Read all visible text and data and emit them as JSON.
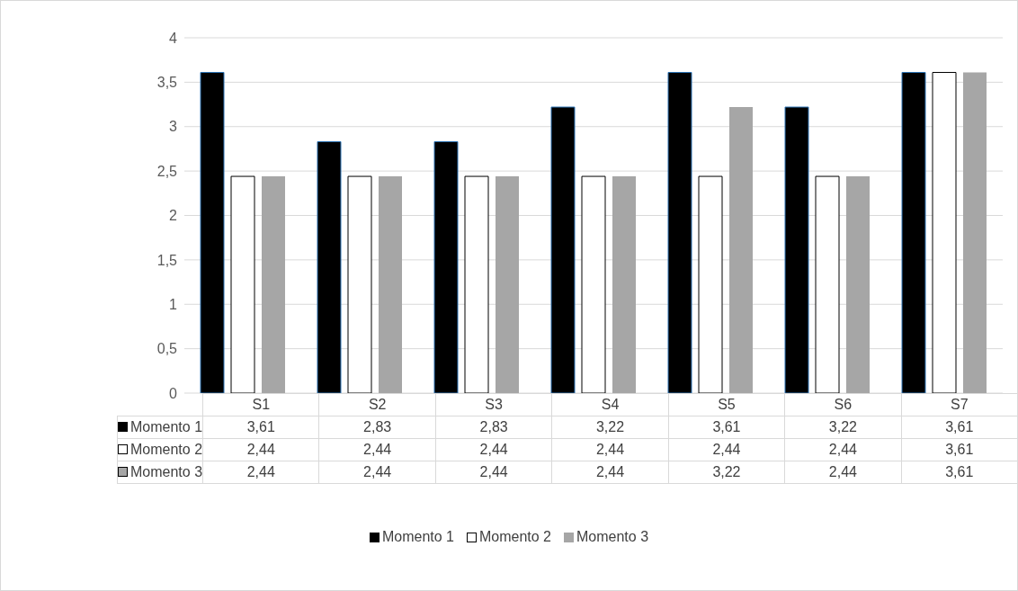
{
  "chart_data": {
    "type": "bar",
    "categories": [
      "S1",
      "S2",
      "S3",
      "S4",
      "S5",
      "S6",
      "S7"
    ],
    "series": [
      {
        "name": "Momento 1",
        "color": "#000000",
        "values": [
          3.61,
          2.83,
          2.83,
          3.22,
          3.61,
          3.22,
          3.61
        ],
        "value_labels": [
          "3,61",
          "2,83",
          "2,83",
          "3,22",
          "3,61",
          "3,22",
          "3,61"
        ]
      },
      {
        "name": "Momento 2",
        "color": "#ffffff",
        "values": [
          2.44,
          2.44,
          2.44,
          2.44,
          2.44,
          2.44,
          3.61
        ],
        "value_labels": [
          "2,44",
          "2,44",
          "2,44",
          "2,44",
          "2,44",
          "2,44",
          "3,61"
        ]
      },
      {
        "name": "Momento 3",
        "color": "#a6a6a6",
        "values": [
          2.44,
          2.44,
          2.44,
          2.44,
          3.22,
          2.44,
          3.61
        ],
        "value_labels": [
          "2,44",
          "2,44",
          "2,44",
          "2,44",
          "3,22",
          "2,44",
          "3,61"
        ]
      }
    ],
    "ylim": [
      0,
      4
    ],
    "yticks": [
      0,
      {
        "value": 0.5,
        "label": "0,5"
      },
      1,
      {
        "value": 1.5,
        "label": "1,5"
      },
      2,
      {
        "value": 2.5,
        "label": "2,5"
      },
      3,
      {
        "value": 3.5,
        "label": "3,5"
      },
      4
    ],
    "grid": "y",
    "legend": "bottom"
  }
}
